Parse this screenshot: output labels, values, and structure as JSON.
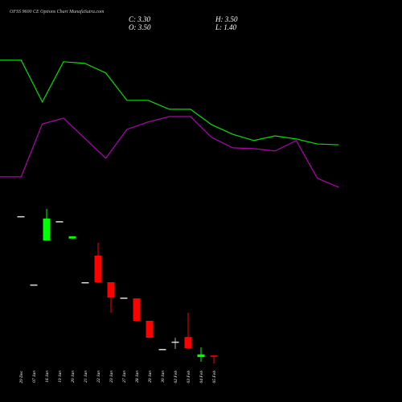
{
  "chart_data": {
    "type": "candlestick",
    "title": "OFSS 9600 CE Options Chart MunafaSutra.com",
    "ohlc_header": {
      "close": "C: 3.30",
      "high": "H: 3.50",
      "open": "O: 3.50",
      "low": "L: 1.40"
    },
    "categories": [
      "29 Dec",
      "07 Jan",
      "16 Jan",
      "19 Jan",
      "20 Jan",
      "21 Jan",
      "22 Jan",
      "23 Jan",
      "27 Jan",
      "28 Jan",
      "29 Jan",
      "30 Jan",
      "02 Feb",
      "03 Feb",
      "04 Feb",
      "05 Feb"
    ],
    "open": [
      39.6,
      21.9,
      33.3,
      38.3,
      33.8,
      22.5,
      29.4,
      22.5,
      18.5,
      18.3,
      12.5,
      5.2,
      7.1,
      8.3,
      3.1,
      3.5
    ],
    "high": [
      39.6,
      21.9,
      41.5,
      38.3,
      34.4,
      22.5,
      32.7,
      22.5,
      18.5,
      18.3,
      12.5,
      5.2,
      8.1,
      14.6,
      5.6,
      3.5
    ],
    "low": [
      39.6,
      21.9,
      33.3,
      38.3,
      33.8,
      22.5,
      22.5,
      14.6,
      18.5,
      12.5,
      8.1,
      5.2,
      5.2,
      5.4,
      1.9,
      1.4
    ],
    "close": [
      39.6,
      21.9,
      39.0,
      38.3,
      34.4,
      22.5,
      22.5,
      18.5,
      18.5,
      12.5,
      8.1,
      5.2,
      7.1,
      5.4,
      3.8,
      3.3
    ],
    "up_color": "#00ff00",
    "down_color": "#ff0000",
    "flat_color": "#dddddd",
    "ylim": [
      0,
      95.6
    ],
    "lines": [
      {
        "color": "#00e000",
        "x": [
          0,
          1,
          2,
          3,
          4,
          5,
          6,
          7,
          8,
          9,
          10,
          11,
          12,
          13,
          14,
          15,
          16
        ],
        "values": [
          80,
          80,
          69.2,
          79.6,
          79.2,
          76.7,
          69.6,
          69.6,
          67.3,
          67.3,
          63.3,
          60.8,
          59.2,
          60.4,
          59.6,
          58.3,
          58.1
        ]
      },
      {
        "color": "#b000b0",
        "x": [
          0,
          1,
          2,
          3,
          4,
          5,
          6,
          7,
          8,
          9,
          10,
          11,
          12,
          13,
          14,
          15,
          16
        ],
        "values": [
          49.8,
          49.8,
          63.5,
          65,
          59.8,
          54.6,
          62.1,
          64,
          65.4,
          65.4,
          60,
          57.3,
          57.1,
          56.5,
          59.2,
          49.4,
          47.1
        ]
      }
    ],
    "line_xlim": [
      0,
      16
    ]
  }
}
